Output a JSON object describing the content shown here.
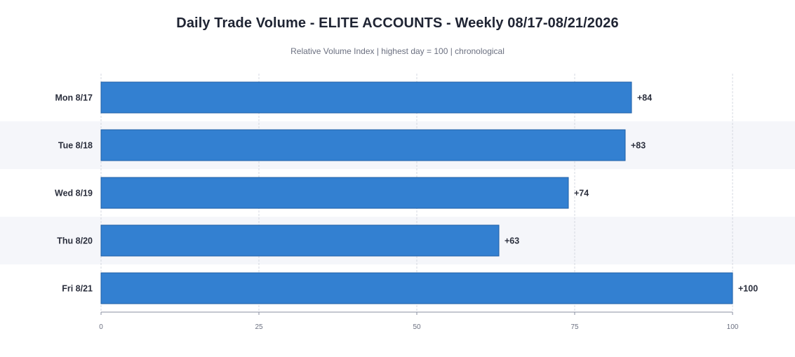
{
  "chart": {
    "title": "Daily Trade Volume - ELITE ACCOUNTS - Weekly 08/17-08/21/2026",
    "subtitle": "Relative Volume Index  |  highest day = 100  |  chronological"
  },
  "chart_data": {
    "type": "bar",
    "orientation": "horizontal",
    "title": "Daily Trade Volume - ELITE ACCOUNTS - Weekly 08/17-08/21/2026",
    "subtitle": "Relative Volume Index  |  highest day = 100  |  chronological",
    "categories": [
      "Mon 8/17",
      "Tue 8/18",
      "Wed 8/19",
      "Thu 8/20",
      "Fri 8/21"
    ],
    "values": [
      84,
      83,
      74,
      63,
      100
    ],
    "value_labels": [
      "+84",
      "+83",
      "+74",
      "+63",
      "+100"
    ],
    "xlim": [
      0,
      100
    ],
    "x_ticks": [
      0,
      25,
      50,
      75,
      100
    ],
    "grid": true,
    "bar_color": "#3380d1",
    "band_color": "#f5f6fa"
  }
}
